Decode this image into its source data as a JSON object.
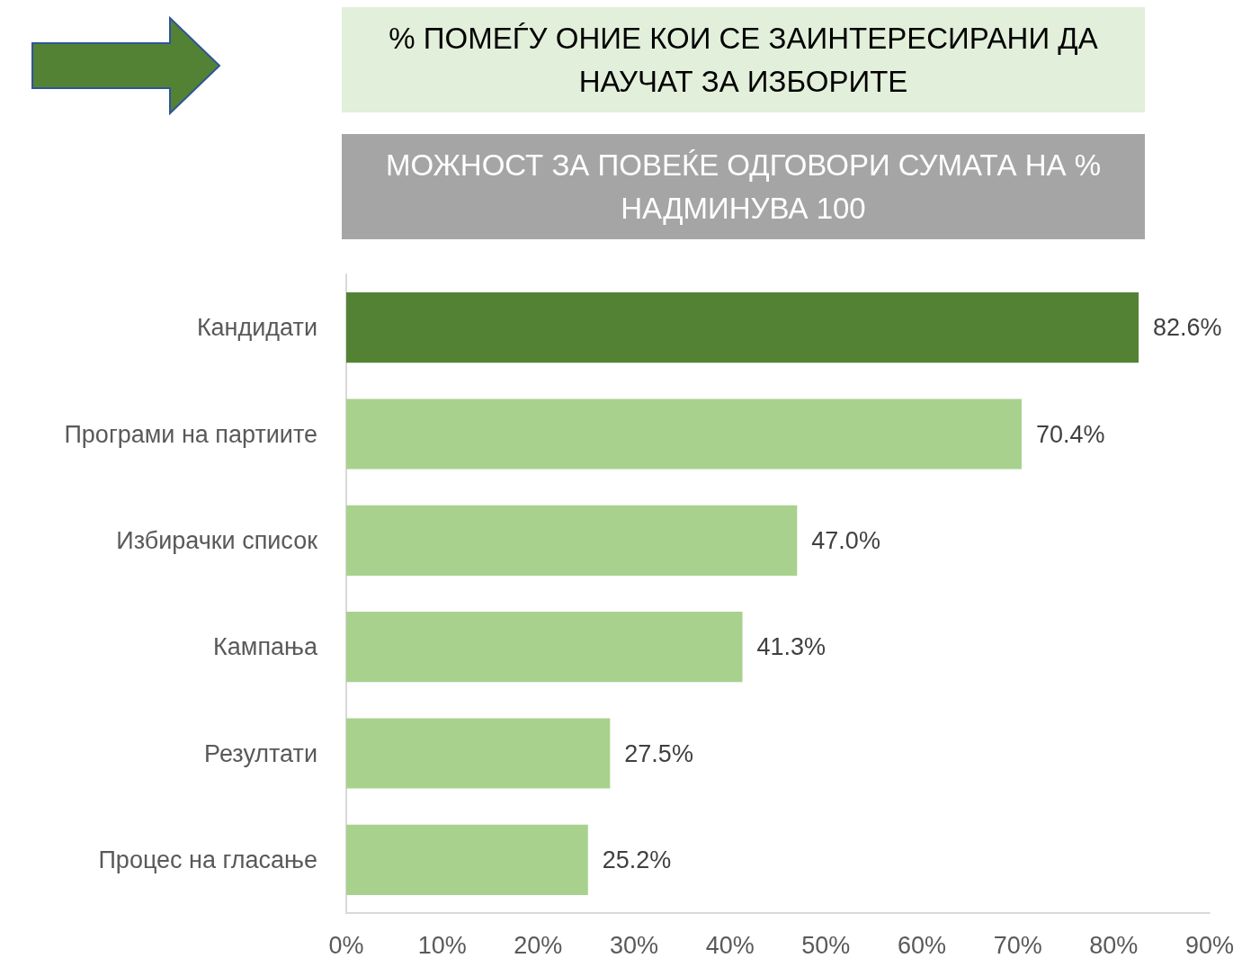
{
  "chart_data": {
    "type": "bar",
    "orientation": "horizontal",
    "title": "% ПОМЕЃУ ОНИЕ КОИ СЕ ЗАИНТЕРЕСИРАНИ ДА НАУЧАТ ЗА ИЗБОРИТЕ",
    "subtitle": "МОЖНОСТ ЗА ПОВЕЌЕ ОДГОВОРИ СУМАТА НА % НАДМИНУВА 100",
    "categories": [
      "Кандидати",
      "Програми на партиите",
      "Избирачки список",
      "Кампања",
      "Резултати",
      "Процес на гласање"
    ],
    "values": [
      82.6,
      70.4,
      47.0,
      41.3,
      27.5,
      25.2
    ],
    "value_labels": [
      "82.6%",
      "70.4%",
      "47.0%",
      "41.3%",
      "27.5%",
      "25.2%"
    ],
    "colors": [
      "#548235",
      "#a9d18e",
      "#a9d18e",
      "#a9d18e",
      "#a9d18e",
      "#a9d18e"
    ],
    "xlim": [
      0,
      90
    ],
    "xticks": [
      {
        "value": 0,
        "label": "0%"
      },
      {
        "value": 10,
        "label": "10%"
      },
      {
        "value": 20,
        "label": "20%"
      },
      {
        "value": 30,
        "label": "30%"
      },
      {
        "value": 40,
        "label": "40%"
      },
      {
        "value": 50,
        "label": "50%"
      },
      {
        "value": 60,
        "label": "60%"
      },
      {
        "value": 70,
        "label": "70%"
      },
      {
        "value": 80,
        "label": "80%"
      },
      {
        "value": 90,
        "label": "90%"
      }
    ],
    "grid": false
  }
}
